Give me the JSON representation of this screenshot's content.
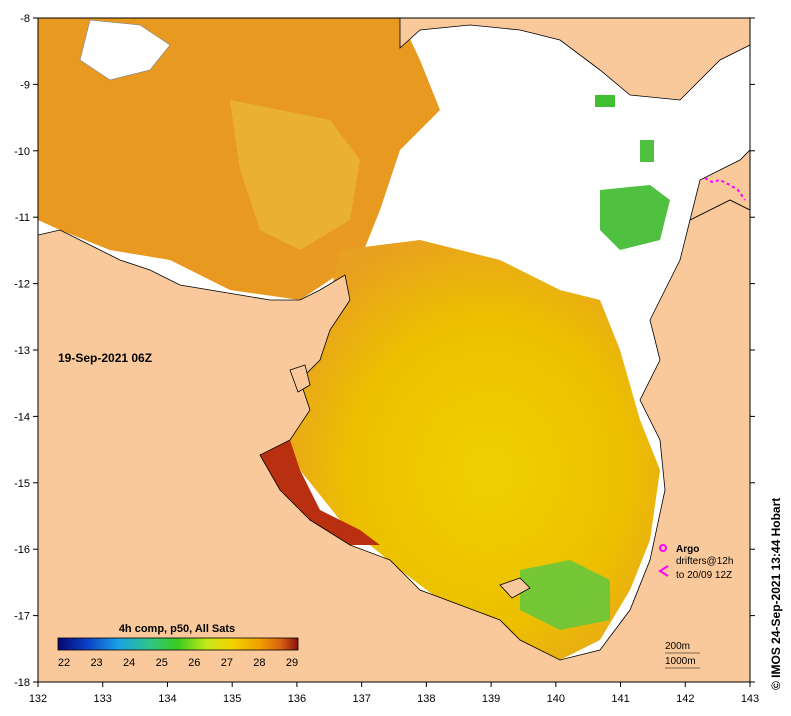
{
  "map": {
    "date_label": "19-Sep-2021 06Z",
    "credit": "© IMOS 24-Sep-2021 13:44 Hobart",
    "x_ticks": [
      "132",
      "133",
      "134",
      "135",
      "136",
      "137",
      "138",
      "139",
      "140",
      "141",
      "142",
      "143"
    ],
    "y_ticks": [
      "-8",
      "-9",
      "-10",
      "-11",
      "-12",
      "-13",
      "-14",
      "-15",
      "-16",
      "-17",
      "-18"
    ],
    "colorbar": {
      "title": "4h comp, p50, All Sats",
      "labels": [
        "22",
        "23",
        "24",
        "25",
        "26",
        "27",
        "28",
        "29"
      ],
      "colors": [
        "#08086e",
        "#0a3fc4",
        "#1aa0e6",
        "#2fc48a",
        "#3ccc1e",
        "#c6e81a",
        "#f2d400",
        "#f0a000",
        "#d86010",
        "#8a1010"
      ]
    },
    "legend": {
      "argo_label": "Argo",
      "drifters_label": "drifters@12h",
      "to_label": "to 20/09 12Z",
      "depth_200": "200m",
      "depth_1000": "1000m"
    },
    "colors": {
      "land": "#f9c99b",
      "warm": "#e8a020",
      "yellow": "#e8d000",
      "green": "#50c840",
      "hot": "#b02010",
      "magenta": "#ff00ff"
    }
  }
}
